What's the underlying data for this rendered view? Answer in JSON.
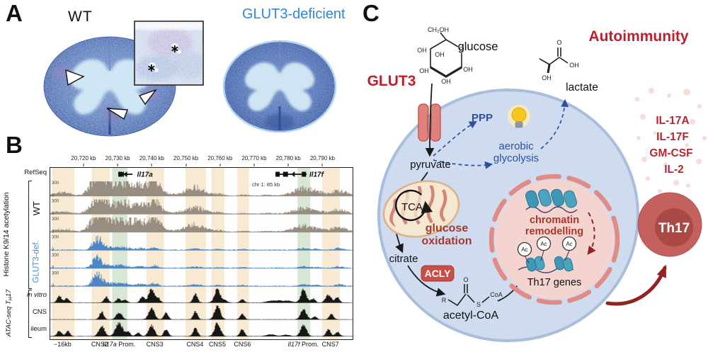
{
  "panels": {
    "a": {
      "label": "A",
      "wt": "WT",
      "ko": "GLUT3-deficient",
      "ko_color": "#2e86d8",
      "asterisk": "∗"
    },
    "b": {
      "label": "B",
      "refseq": "RefSeq",
      "chr_label": "chr 1: 85 kb",
      "ticks": [
        "20,720 kb",
        "20,730 kb",
        "20,740 kb",
        "20,750 kb",
        "20,760 kb",
        "20,770 kb",
        "20,780 kb",
        "20,790 kb"
      ],
      "y_top": "300",
      "y_bottom": "0",
      "hist_group": "Histone K9/14 acetylation",
      "wt": "WT",
      "ko": "GLUT3-def.",
      "atac_group_parts": [
        "ATAC-seq T",
        "H",
        "17"
      ],
      "atac_tracks": [
        "in vitro",
        "CNS",
        "ileum"
      ],
      "genes": [
        {
          "name": "Il17a",
          "f0": 0.225,
          "f1": 0.272,
          "fl": 0.287,
          "exons": [
            0.225
          ]
        },
        {
          "name": "Il17f",
          "f0": 0.745,
          "f1": 0.848,
          "fl": 0.857,
          "exons": [
            0.745,
            0.77,
            0.832
          ]
        }
      ],
      "regions": [
        {
          "text": "−16kb",
          "f": 0.043
        },
        {
          "text": "CNS2",
          "f": 0.166
        },
        {
          "italic": "Il17a",
          "text": " Prom.",
          "f": 0.23
        },
        {
          "text": "CNS3",
          "f": 0.348
        },
        {
          "text": "CNS4",
          "f": 0.481
        },
        {
          "text": "CNS5",
          "f": 0.555
        },
        {
          "text": "CNS6",
          "f": 0.638
        },
        {
          "italic": "Il17f",
          "text": " Prom.",
          "f": 0.839
        },
        {
          "text": "CNS7",
          "f": 0.929
        }
      ],
      "highlights": [
        {
          "f0": 0.006,
          "f1": 0.08,
          "c": "orange"
        },
        {
          "f0": 0.137,
          "f1": 0.197,
          "c": "orange"
        },
        {
          "f0": 0.205,
          "f1": 0.255,
          "c": "green"
        },
        {
          "f0": 0.318,
          "f1": 0.376,
          "c": "orange"
        },
        {
          "f0": 0.447,
          "f1": 0.515,
          "c": "orange"
        },
        {
          "f0": 0.533,
          "f1": 0.576,
          "c": "orange"
        },
        {
          "f0": 0.618,
          "f1": 0.657,
          "c": "orange"
        },
        {
          "f0": 0.818,
          "f1": 0.86,
          "c": "green"
        },
        {
          "f0": 0.9,
          "f1": 0.958,
          "c": "orange"
        }
      ],
      "colors": {
        "wt": "#978d80",
        "ko": "#4c86c5",
        "atac": "#171717",
        "orange": "#f7e9d2",
        "green": "#d8e6d4"
      },
      "signal": {
        "wt_peaks": [
          [
            0.03,
            0.2,
            8
          ],
          [
            0.06,
            0.13,
            6
          ],
          [
            0.148,
            0.9,
            9
          ],
          [
            0.165,
            1.0,
            6
          ],
          [
            0.185,
            0.62,
            8
          ],
          [
            0.215,
            0.5,
            9
          ],
          [
            0.235,
            0.46,
            8
          ],
          [
            0.258,
            0.44,
            8
          ],
          [
            0.278,
            0.4,
            8
          ],
          [
            0.3,
            0.46,
            7
          ],
          [
            0.328,
            0.55,
            7
          ],
          [
            0.345,
            0.9,
            5
          ],
          [
            0.362,
            0.42,
            8
          ],
          [
            0.43,
            0.14,
            10
          ],
          [
            0.468,
            0.36,
            9
          ],
          [
            0.49,
            0.3,
            8
          ],
          [
            0.52,
            0.16,
            8
          ],
          [
            0.56,
            0.12,
            6
          ],
          [
            0.64,
            0.07,
            6
          ],
          [
            0.72,
            0.05,
            8
          ],
          [
            0.8,
            0.16,
            9
          ],
          [
            0.832,
            0.34,
            8
          ],
          [
            0.855,
            0.24,
            8
          ],
          [
            0.88,
            0.17,
            7
          ],
          [
            0.905,
            0.14,
            6
          ],
          [
            0.945,
            0.3,
            7
          ],
          [
            0.975,
            0.22,
            6
          ]
        ],
        "wt_scales": [
          1,
          0.75,
          0.85
        ],
        "ko_peaks": [
          [
            0.148,
            0.5,
            5
          ],
          [
            0.162,
            0.46,
            5
          ],
          [
            0.185,
            0.16,
            8
          ],
          [
            0.22,
            0.13,
            9
          ],
          [
            0.25,
            0.11,
            8
          ],
          [
            0.3,
            0.12,
            6
          ],
          [
            0.345,
            0.17,
            5
          ],
          [
            0.48,
            0.08,
            8
          ],
          [
            0.555,
            0.06,
            5
          ],
          [
            0.638,
            0.05,
            5
          ],
          [
            0.838,
            0.11,
            6
          ],
          [
            0.88,
            0.06,
            5
          ],
          [
            0.955,
            0.12,
            5
          ]
        ],
        "ko_scales": [
          1,
          0.9,
          1.05
        ],
        "atac_peaks": [
          [
            [
              0.03,
              0.5,
              3
            ],
            [
              0.055,
              0.32,
              3
            ],
            [
              0.185,
              0.42,
              3
            ],
            [
              0.225,
              0.28,
              3
            ],
            [
              0.247,
              0.22,
              3
            ],
            [
              0.305,
              0.48,
              3
            ],
            [
              0.335,
              1.0,
              4
            ],
            [
              0.357,
              0.3,
              3
            ],
            [
              0.48,
              0.62,
              3
            ],
            [
              0.553,
              1.0,
              4
            ],
            [
              0.578,
              0.2,
              3
            ],
            [
              0.635,
              0.25,
              3
            ],
            [
              0.73,
              0.12,
              6
            ],
            [
              0.76,
              0.14,
              6
            ],
            [
              0.79,
              0.12,
              5
            ],
            [
              0.838,
              0.92,
              4
            ],
            [
              0.87,
              0.28,
              3
            ],
            [
              0.92,
              0.55,
              4
            ],
            [
              0.95,
              0.38,
              3
            ]
          ],
          [
            [
              0.17,
              0.55,
              3
            ],
            [
              0.228,
              0.5,
              4
            ],
            [
              0.335,
              0.82,
              4
            ],
            [
              0.383,
              0.5,
              3
            ],
            [
              0.48,
              0.55,
              3
            ],
            [
              0.553,
              1.0,
              4
            ],
            [
              0.635,
              0.4,
              3
            ],
            [
              0.838,
              0.75,
              4
            ],
            [
              0.875,
              0.2,
              3
            ],
            [
              0.93,
              0.4,
              3
            ]
          ],
          [
            [
              0.03,
              0.4,
              3
            ],
            [
              0.058,
              0.35,
              3
            ],
            [
              0.17,
              0.75,
              4
            ],
            [
              0.228,
              0.95,
              5
            ],
            [
              0.258,
              0.3,
              3
            ],
            [
              0.29,
              0.25,
              3
            ],
            [
              0.335,
              0.75,
              4
            ],
            [
              0.383,
              0.5,
              3
            ],
            [
              0.48,
              0.62,
              3
            ],
            [
              0.553,
              0.95,
              4
            ],
            [
              0.635,
              0.5,
              3
            ],
            [
              0.73,
              0.12,
              6
            ],
            [
              0.78,
              0.1,
              5
            ],
            [
              0.838,
              0.85,
              4
            ],
            [
              0.92,
              0.5,
              3
            ],
            [
              0.95,
              0.3,
              3
            ]
          ]
        ]
      }
    },
    "c": {
      "label": "C",
      "autoimmunity": "Autoimmunity",
      "glut3": "GLUT3",
      "glucose": "glucose",
      "lactate": "lactate",
      "ppp": "PPP",
      "aerobic": "aerobic",
      "glycolysis": "glycolysis",
      "pyruvate": "pyruvate",
      "tca": "TCA",
      "glucose_ox1": "glucose",
      "glucose_ox2": "oxidation",
      "citrate": "citrate",
      "acly": "ACLY",
      "acetyl_coa": "acetyl-CoA",
      "chromatin1": "chromatin",
      "chromatin2": "remodelling",
      "th17_genes": "Th17 genes",
      "th17": "Th17",
      "ac": "Ac",
      "cytokines": [
        "IL-17A",
        "IL-17F",
        "GM-CSF",
        "IL-2"
      ],
      "atoms": {
        "ch2oh": "CH₂OH",
        "o": "O",
        "oh": "OH",
        "r": "R",
        "s": "S",
        "coa": "CoA"
      },
      "colors": {
        "red": "#bf1f2d",
        "dark_red": "#8f2420",
        "heading_red": "#a6382e",
        "blue": "#2d4f9e",
        "cyt": "#b5262e"
      }
    }
  }
}
